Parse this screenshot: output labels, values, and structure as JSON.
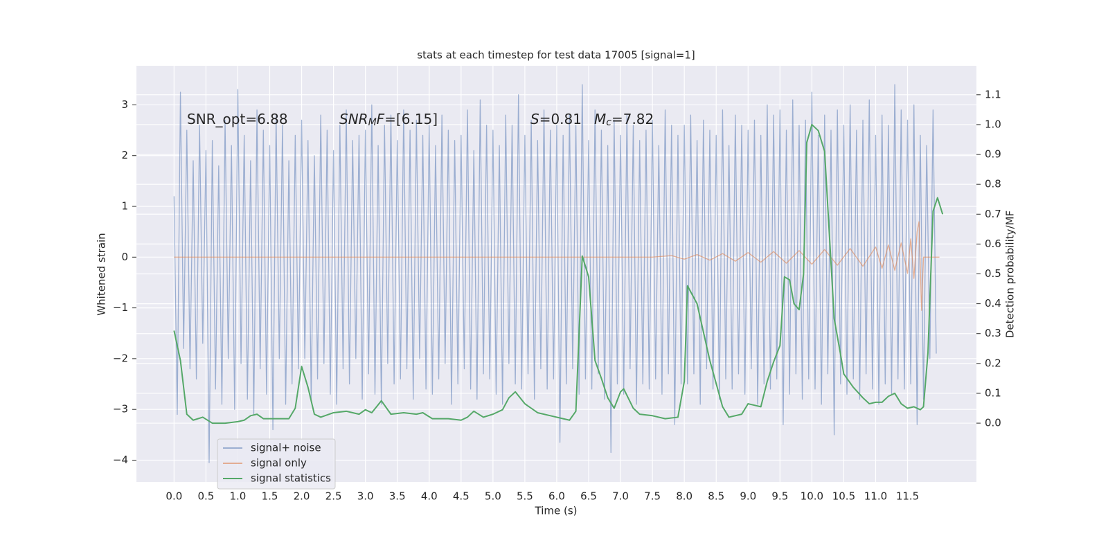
{
  "chart_data": {
    "type": "line",
    "title": "stats at each timestep for test data 17005 [signal=1]",
    "xlabel": "Time (s)",
    "ylabel": "Whitened strain",
    "y2label": "Detection probability/MF",
    "xlim": [
      -0.59,
      12.58
    ],
    "ylim": [
      -4.43,
      3.77
    ],
    "y2lim": [
      -0.197,
      1.197
    ],
    "xticks": [
      {
        "value": 0,
        "label": "0.0"
      },
      0.5,
      {
        "value": 1,
        "label": "1.0"
      },
      1.5,
      {
        "value": 2,
        "label": "2.0"
      },
      2.5,
      {
        "value": 3,
        "label": "3.0"
      },
      3.5,
      {
        "value": 4,
        "label": "4.0"
      },
      4.5,
      {
        "value": 5,
        "label": "5.0"
      },
      5.5,
      {
        "value": 6,
        "label": "6.0"
      },
      6.5,
      {
        "value": 7,
        "label": "7.0"
      },
      7.5,
      {
        "value": 8,
        "label": "8.0"
      },
      8.5,
      {
        "value": 9,
        "label": "9.0"
      },
      9.5,
      {
        "value": 10,
        "label": "10.0"
      },
      10.5,
      {
        "value": 11,
        "label": "11.0"
      },
      11.5
    ],
    "yticks": [
      {
        "value": -4,
        "label": "−4"
      },
      {
        "value": -3,
        "label": "−3"
      },
      {
        "value": -2,
        "label": "−2"
      },
      {
        "value": -1,
        "label": "−1"
      },
      0,
      1,
      2,
      3
    ],
    "y2ticks": [
      {
        "value": 0,
        "label": "0.0"
      },
      0.1,
      0.2,
      0.3,
      0.4,
      0.5,
      0.6,
      0.7,
      0.8,
      0.9,
      {
        "value": 1,
        "label": "1.0"
      },
      1.1
    ],
    "grid": true,
    "legend": "lower left",
    "annotations": [
      {
        "runs": [
          {
            "text": "SNR_opt=6.88"
          }
        ]
      },
      {
        "runs": [
          {
            "text": "SNR",
            "italic": true
          },
          {
            "text": "M",
            "italic": true,
            "sub": true
          },
          {
            "text": "F",
            "italic": true
          },
          {
            "text": "=[6.15]"
          }
        ]
      },
      {
        "runs": [
          {
            "text": "S",
            "italic": true
          },
          {
            "text": "=0.81"
          }
        ]
      },
      {
        "runs": [
          {
            "text": "M",
            "italic": true
          },
          {
            "text": "c",
            "italic": true,
            "sub": true
          },
          {
            "text": "=7.82"
          }
        ]
      }
    ],
    "series": [
      {
        "name": "signal+ noise",
        "color": "#4c72b0",
        "alpha": 0.5,
        "x": [
          0.0,
          0.05,
          0.1,
          0.15,
          0.2,
          0.25,
          0.3,
          0.35,
          0.4,
          0.45,
          0.5,
          0.55,
          0.6,
          0.65,
          0.7,
          0.75,
          0.8,
          0.85,
          0.9,
          0.95,
          1.0,
          1.05,
          1.1,
          1.15,
          1.2,
          1.25,
          1.3,
          1.35,
          1.4,
          1.45,
          1.5,
          1.55,
          1.6,
          1.65,
          1.7,
          1.75,
          1.8,
          1.85,
          1.9,
          1.95,
          2.0,
          2.05,
          2.1,
          2.15,
          2.2,
          2.25,
          2.3,
          2.35,
          2.4,
          2.45,
          2.5,
          2.55,
          2.6,
          2.65,
          2.7,
          2.75,
          2.8,
          2.85,
          2.9,
          2.95,
          3.0,
          3.05,
          3.1,
          3.15,
          3.2,
          3.25,
          3.3,
          3.35,
          3.4,
          3.45,
          3.5,
          3.55,
          3.6,
          3.65,
          3.7,
          3.75,
          3.8,
          3.85,
          3.9,
          3.95,
          4.0,
          4.05,
          4.1,
          4.15,
          4.2,
          4.25,
          4.3,
          4.35,
          4.4,
          4.45,
          4.5,
          4.55,
          4.6,
          4.65,
          4.7,
          4.75,
          4.8,
          4.85,
          4.9,
          4.95,
          5.0,
          5.05,
          5.1,
          5.15,
          5.2,
          5.25,
          5.3,
          5.35,
          5.4,
          5.45,
          5.5,
          5.55,
          5.6,
          5.65,
          5.7,
          5.75,
          5.8,
          5.85,
          5.9,
          5.95,
          6.0,
          6.05,
          6.1,
          6.15,
          6.2,
          6.25,
          6.3,
          6.35,
          6.4,
          6.45,
          6.5,
          6.55,
          6.6,
          6.65,
          6.7,
          6.75,
          6.8,
          6.85,
          6.9,
          6.95,
          7.0,
          7.05,
          7.1,
          7.15,
          7.2,
          7.25,
          7.3,
          7.35,
          7.4,
          7.45,
          7.5,
          7.55,
          7.6,
          7.65,
          7.7,
          7.75,
          7.8,
          7.85,
          7.9,
          7.95,
          8.0,
          8.05,
          8.1,
          8.15,
          8.2,
          8.25,
          8.3,
          8.35,
          8.4,
          8.45,
          8.5,
          8.55,
          8.6,
          8.65,
          8.7,
          8.75,
          8.8,
          8.85,
          8.9,
          8.95,
          9.0,
          9.05,
          9.1,
          9.15,
          9.2,
          9.25,
          9.3,
          9.35,
          9.4,
          9.45,
          9.5,
          9.55,
          9.6,
          9.65,
          9.7,
          9.75,
          9.8,
          9.85,
          9.9,
          9.95,
          10.0,
          10.05,
          10.1,
          10.15,
          10.2,
          10.25,
          10.3,
          10.35,
          10.4,
          10.45,
          10.5,
          10.55,
          10.6,
          10.65,
          10.7,
          10.75,
          10.8,
          10.85,
          10.9,
          10.95,
          11.0,
          11.05,
          11.1,
          11.15,
          11.2,
          11.25,
          11.3,
          11.35,
          11.4,
          11.45,
          11.5,
          11.55,
          11.6,
          11.65,
          11.7,
          11.75,
          11.8,
          11.85,
          11.9,
          11.95
        ],
        "values": [
          1.2,
          -3.1,
          3.25,
          -1.8,
          2.5,
          -2.2,
          1.9,
          -2.4,
          2.6,
          -1.7,
          2.1,
          -4.05,
          2.3,
          -2.6,
          1.8,
          -2.9,
          2.7,
          -2.0,
          2.2,
          -3.0,
          3.3,
          -2.1,
          2.4,
          -2.8,
          1.9,
          -3.1,
          2.9,
          -2.2,
          2.5,
          -2.7,
          2.2,
          -3.4,
          2.8,
          -2.0,
          2.6,
          -2.9,
          1.9,
          -2.5,
          2.4,
          -2.2,
          2.7,
          -2.0,
          2.3,
          -2.8,
          2.0,
          -2.4,
          2.8,
          -2.1,
          2.5,
          -2.7,
          2.1,
          -2.9,
          2.6,
          -2.2,
          2.9,
          -2.5,
          2.3,
          -2.0,
          2.4,
          -2.8,
          2.5,
          -2.3,
          3.0,
          -2.7,
          2.2,
          -2.9,
          2.6,
          -2.1,
          2.8,
          -2.5,
          2.3,
          -2.4,
          2.9,
          -2.2,
          2.5,
          -2.8,
          2.7,
          -2.0,
          2.4,
          -2.6,
          2.6,
          -2.7,
          2.2,
          -2.4,
          2.8,
          -2.1,
          2.5,
          -2.9,
          2.3,
          -2.5,
          2.4,
          -2.2,
          2.9,
          -2.6,
          2.1,
          -2.8,
          3.1,
          -2.3,
          2.6,
          -2.4,
          2.5,
          -2.7,
          2.2,
          -2.9,
          2.8,
          -2.1,
          2.6,
          -2.5,
          3.2,
          -2.6,
          2.4,
          -2.3,
          2.7,
          -2.8,
          2.3,
          -2.2,
          2.9,
          -2.6,
          2.5,
          -2.4,
          2.6,
          -3.65,
          2.4,
          -2.5,
          2.8,
          -2.2,
          2.6,
          -2.7,
          3.4,
          -2.4,
          2.3,
          -2.6,
          2.9,
          -2.3,
          2.5,
          -2.8,
          2.2,
          -3.85,
          2.7,
          -2.5,
          2.4,
          -2.7,
          2.8,
          -2.2,
          2.6,
          -2.9,
          2.3,
          -2.5,
          2.5,
          -2.6,
          2.7,
          -2.4,
          2.2,
          -2.7,
          2.9,
          -2.3,
          2.6,
          -3.3,
          2.4,
          -2.5,
          2.6,
          -2.5,
          2.8,
          -2.3,
          2.3,
          -2.9,
          2.7,
          -2.2,
          2.5,
          -2.6,
          2.4,
          -2.8,
          2.9,
          -2.4,
          2.2,
          -2.6,
          2.8,
          -2.3,
          2.6,
          -2.7,
          2.5,
          -2.2,
          2.7,
          -2.9,
          2.4,
          -2.5,
          3.0,
          -2.6,
          2.8,
          -2.4,
          2.9,
          -3.3,
          2.5,
          -2.7,
          3.1,
          -2.3,
          2.6,
          -2.8,
          2.7,
          -2.4,
          3.25,
          -2.6,
          2.4,
          -2.9,
          2.8,
          -2.3,
          2.5,
          -3.5,
          2.9,
          -2.5,
          2.6,
          -2.7,
          3.0,
          -2.4,
          2.5,
          -2.8,
          2.7,
          -2.3,
          3.1,
          -2.6,
          2.4,
          -2.9,
          2.8,
          -2.5,
          2.6,
          -2.7,
          3.4,
          -2.4,
          2.9,
          -2.6,
          2.7,
          -2.5,
          3.0,
          -3.3,
          2.4,
          -2.8,
          2.2,
          -2.0,
          2.9,
          -1.9
        ]
      },
      {
        "name": "signal only",
        "color": "#dd8452",
        "alpha": 0.6,
        "x": [
          0.0,
          7.5,
          7.8,
          8.0,
          8.2,
          8.4,
          8.6,
          8.8,
          9.0,
          9.2,
          9.4,
          9.6,
          9.8,
          10.0,
          10.2,
          10.4,
          10.6,
          10.8,
          11.0,
          11.1,
          11.2,
          11.3,
          11.4,
          11.5,
          11.55,
          11.6,
          11.65,
          11.68,
          11.72,
          11.75,
          12.0
        ],
        "values": [
          0,
          0,
          0.03,
          -0.04,
          0.05,
          -0.06,
          0.07,
          -0.08,
          0.09,
          -0.1,
          0.11,
          -0.12,
          0.13,
          -0.14,
          0.15,
          -0.16,
          0.17,
          -0.18,
          0.2,
          -0.22,
          0.24,
          -0.26,
          0.28,
          -0.32,
          0.36,
          -0.42,
          0.5,
          0.7,
          -1.05,
          0,
          0
        ]
      },
      {
        "name": "signal statistics",
        "color": "#55a868",
        "alpha": 1,
        "axis": "y2",
        "x": [
          0.0,
          0.1,
          0.2,
          0.3,
          0.45,
          0.6,
          0.8,
          1.0,
          1.1,
          1.2,
          1.3,
          1.4,
          1.6,
          1.8,
          1.9,
          2.0,
          2.1,
          2.2,
          2.3,
          2.5,
          2.7,
          2.9,
          3.0,
          3.1,
          3.25,
          3.4,
          3.6,
          3.8,
          3.9,
          4.05,
          4.3,
          4.5,
          4.6,
          4.7,
          4.85,
          5.0,
          5.15,
          5.25,
          5.35,
          5.5,
          5.7,
          5.9,
          6.1,
          6.2,
          6.3,
          6.4,
          6.5,
          6.6,
          6.7,
          6.8,
          6.9,
          7.0,
          7.05,
          7.2,
          7.3,
          7.5,
          7.7,
          7.9,
          8.0,
          8.05,
          8.2,
          8.4,
          8.6,
          8.7,
          8.9,
          9.0,
          9.1,
          9.2,
          9.3,
          9.4,
          9.5,
          9.57,
          9.65,
          9.72,
          9.8,
          9.87,
          9.92,
          10.0,
          10.1,
          10.2,
          10.35,
          10.45,
          10.5,
          10.65,
          10.8,
          10.9,
          11.0,
          11.1,
          11.2,
          11.3,
          11.4,
          11.5,
          11.6,
          11.7,
          11.75,
          11.82,
          11.9,
          11.97,
          12.05
        ],
        "values": [
          0.31,
          0.21,
          0.03,
          0.01,
          0.02,
          0.0,
          0.0,
          0.005,
          0.01,
          0.025,
          0.03,
          0.015,
          0.015,
          0.015,
          0.05,
          0.19,
          0.12,
          0.03,
          0.02,
          0.035,
          0.04,
          0.03,
          0.045,
          0.035,
          0.075,
          0.03,
          0.035,
          0.03,
          0.035,
          0.015,
          0.015,
          0.01,
          0.02,
          0.04,
          0.02,
          0.03,
          0.045,
          0.085,
          0.105,
          0.065,
          0.035,
          0.025,
          0.015,
          0.01,
          0.04,
          0.56,
          0.49,
          0.21,
          0.15,
          0.085,
          0.05,
          0.105,
          0.115,
          0.05,
          0.03,
          0.025,
          0.015,
          0.02,
          0.14,
          0.46,
          0.4,
          0.21,
          0.055,
          0.02,
          0.03,
          0.065,
          0.06,
          0.055,
          0.14,
          0.205,
          0.26,
          0.49,
          0.48,
          0.4,
          0.38,
          0.5,
          0.94,
          1.0,
          0.98,
          0.91,
          0.35,
          0.23,
          0.165,
          0.12,
          0.085,
          0.065,
          0.07,
          0.07,
          0.09,
          0.1,
          0.065,
          0.05,
          0.055,
          0.045,
          0.055,
          0.235,
          0.71,
          0.755,
          0.7
        ]
      }
    ]
  }
}
